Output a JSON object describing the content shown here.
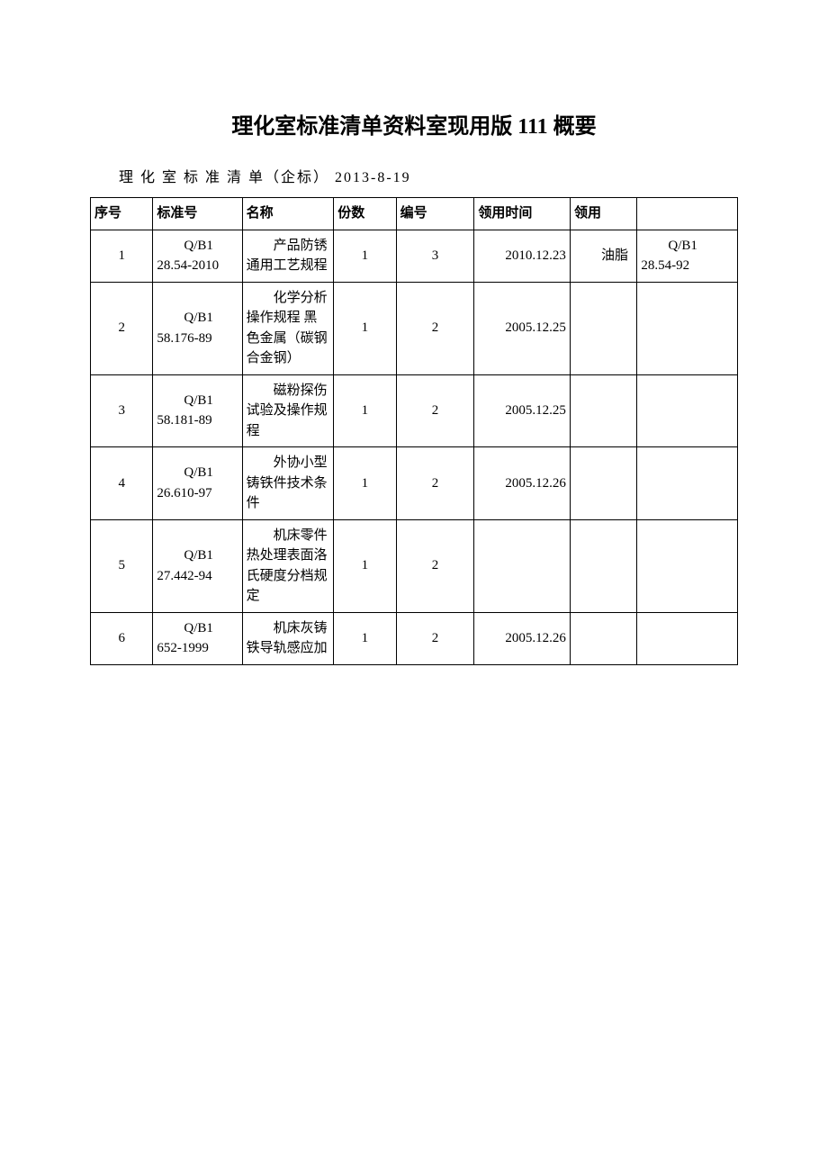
{
  "title": "理化室标准清单资料室现用版 111 概要",
  "subtitle": "理 化 室 标 准 清 单（企标） 2013-8-19",
  "headers": {
    "seq": "序号",
    "std": "标准号",
    "name": "名称",
    "qty": "份数",
    "no": "编号",
    "date": "领用时间",
    "use": "领用",
    "extra": ""
  },
  "rows": [
    {
      "seq": "1",
      "std": "Q/B1 28.54-2010",
      "name": "产品防锈通用工艺规程",
      "qty": "1",
      "no": "3",
      "date": "2010.12.23",
      "use": "油脂",
      "extra": "Q/B1 28.54-92"
    },
    {
      "seq": "2",
      "std": "Q/B1 58.176-89",
      "name": "化学分析操作规程 黑色金属（碳钢合金钢）",
      "qty": "1",
      "no": "2",
      "date": "2005.12.25",
      "use": "",
      "extra": ""
    },
    {
      "seq": "3",
      "std": "Q/B1 58.181-89",
      "name": "磁粉探伤试验及操作规程",
      "qty": "1",
      "no": "2",
      "date": "2005.12.25",
      "use": "",
      "extra": ""
    },
    {
      "seq": "4",
      "std": "Q/B1 26.610-97",
      "name": "外协小型铸铁件技术条件",
      "qty": "1",
      "no": "2",
      "date": "2005.12.26",
      "use": "",
      "extra": ""
    },
    {
      "seq": "5",
      "std": "Q/B1 27.442-94",
      "name": "机床零件热处理表面洛氏硬度分档规定",
      "qty": "1",
      "no": "2",
      "date": "",
      "use": "",
      "extra": ""
    },
    {
      "seq": "6",
      "std": "Q/B1 652-1999",
      "name": "机床灰铸铁导轨感应加",
      "qty": "1",
      "no": "2",
      "date": "2005.12.26",
      "use": "",
      "extra": ""
    }
  ],
  "styles": {
    "background_color": "#ffffff",
    "text_color": "#000000",
    "border_color": "#000000",
    "title_fontsize": 24,
    "body_fontsize": 15,
    "font_family": "SimSun"
  }
}
